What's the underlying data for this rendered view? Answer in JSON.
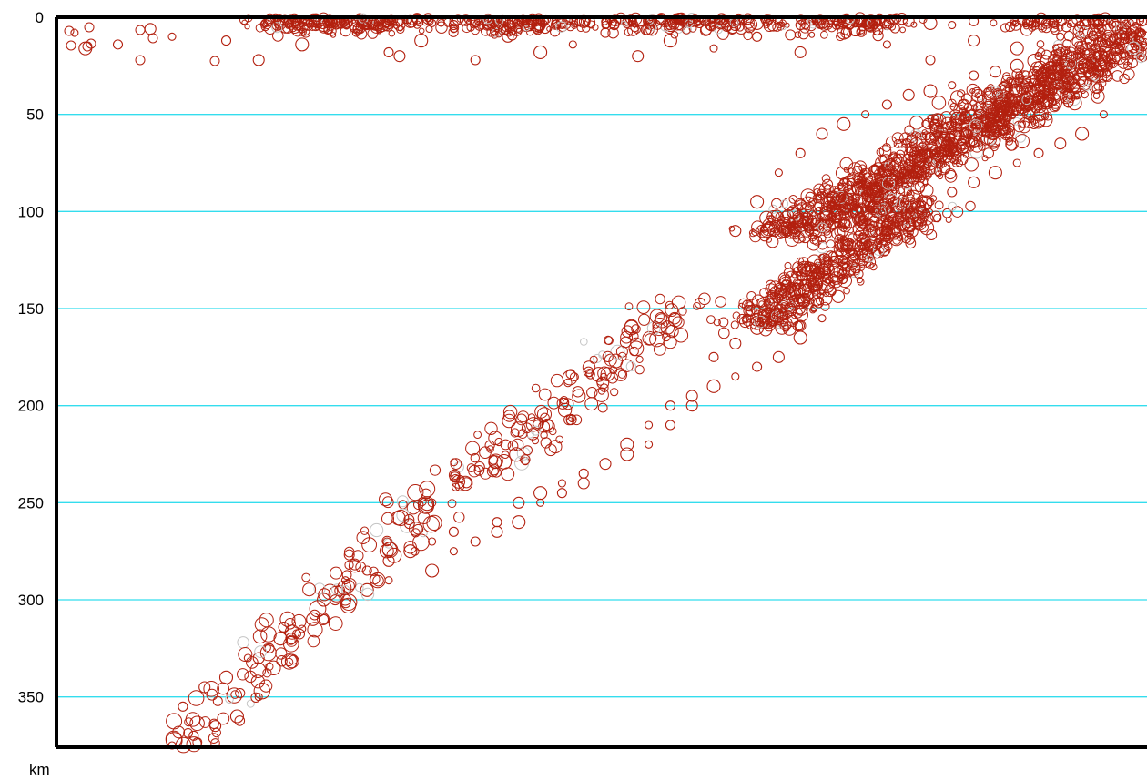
{
  "chart_data": {
    "type": "scatter",
    "title": "",
    "xlabel": "",
    "ylabel": "km",
    "y_unit": "km",
    "y_inverted": true,
    "ylim": [
      0,
      375
    ],
    "yticks": [
      0,
      50,
      100,
      150,
      200,
      250,
      300,
      350
    ],
    "grid": {
      "horizontal": true,
      "color": "#33ddee"
    },
    "x_ticks_shown": false,
    "legend": "none",
    "colors": {
      "primary_marker": "#b3200f",
      "secondary_marker": "#c4c4c4",
      "axis": "#000000"
    },
    "series": [
      {
        "name": "",
        "color": "#b3200f",
        "description_points": "sample of hypocentres; x = horizontal distance along section (relative units 0-100), y = depth km",
        "x": [
          1,
          5,
          8,
          2,
          10,
          15,
          18,
          22,
          27,
          30,
          31,
          33,
          36,
          38,
          41,
          44,
          47,
          50,
          53,
          56,
          60,
          64,
          68,
          72,
          76,
          80,
          84,
          88,
          92,
          96,
          99,
          24,
          26,
          28,
          30,
          32,
          34,
          36,
          38,
          40,
          42,
          44,
          46,
          48,
          50,
          52,
          54,
          56,
          58,
          60,
          62,
          64,
          66,
          68,
          70,
          72,
          74,
          76,
          78,
          80,
          82,
          84,
          62,
          64,
          66,
          68,
          70,
          72,
          74,
          76,
          78,
          80,
          82,
          84,
          86,
          88,
          90,
          92,
          94,
          96,
          98,
          66,
          68,
          70,
          72,
          74,
          76,
          78,
          80,
          82,
          84,
          86,
          88,
          90,
          92,
          94,
          96,
          60,
          62,
          64,
          66,
          68,
          70,
          72,
          74,
          76,
          78,
          52,
          54,
          56,
          58,
          60,
          62,
          64,
          66,
          68,
          70,
          40,
          42,
          44,
          46,
          48,
          50,
          52,
          54,
          56,
          58,
          34,
          36,
          38,
          40,
          42,
          44,
          46,
          48,
          24,
          26,
          28,
          30,
          32,
          34,
          36,
          18,
          20,
          22,
          24,
          26,
          28,
          30,
          11,
          13,
          15,
          17,
          19,
          21,
          23,
          10,
          12,
          14,
          16,
          18
        ],
        "y": [
          8,
          14,
          6,
          16,
          10,
          12,
          22,
          14,
          8,
          18,
          20,
          12,
          6,
          22,
          10,
          18,
          14,
          8,
          20,
          12,
          16,
          10,
          18,
          8,
          14,
          22,
          12,
          16,
          10,
          20,
          14,
          4,
          2,
          4,
          3,
          2,
          3,
          4,
          2,
          3,
          4,
          2,
          3,
          2,
          4,
          3,
          2,
          4,
          3,
          2,
          4,
          3,
          2,
          4,
          3,
          2,
          3,
          4,
          2,
          3,
          4,
          2,
          110,
          95,
          80,
          70,
          60,
          55,
          50,
          45,
          40,
          38,
          35,
          30,
          28,
          25,
          20,
          18,
          15,
          12,
          10,
          150,
          140,
          130,
          125,
          118,
          110,
          102,
          95,
          90,
          85,
          80,
          75,
          70,
          65,
          60,
          50,
          175,
          168,
          160,
          150,
          145,
          140,
          130,
          120,
          110,
          100,
          220,
          210,
          200,
          195,
          190,
          185,
          180,
          175,
          165,
          155,
          260,
          250,
          245,
          240,
          235,
          230,
          225,
          220,
          210,
          200,
          285,
          275,
          270,
          265,
          260,
          250,
          245,
          240,
          300,
          290,
          285,
          280,
          275,
          270,
          265,
          330,
          320,
          315,
          310,
          300,
          295,
          290,
          355,
          345,
          340,
          330,
          325,
          320,
          310,
          375,
          370,
          365,
          360,
          350
        ]
      }
    ]
  }
}
